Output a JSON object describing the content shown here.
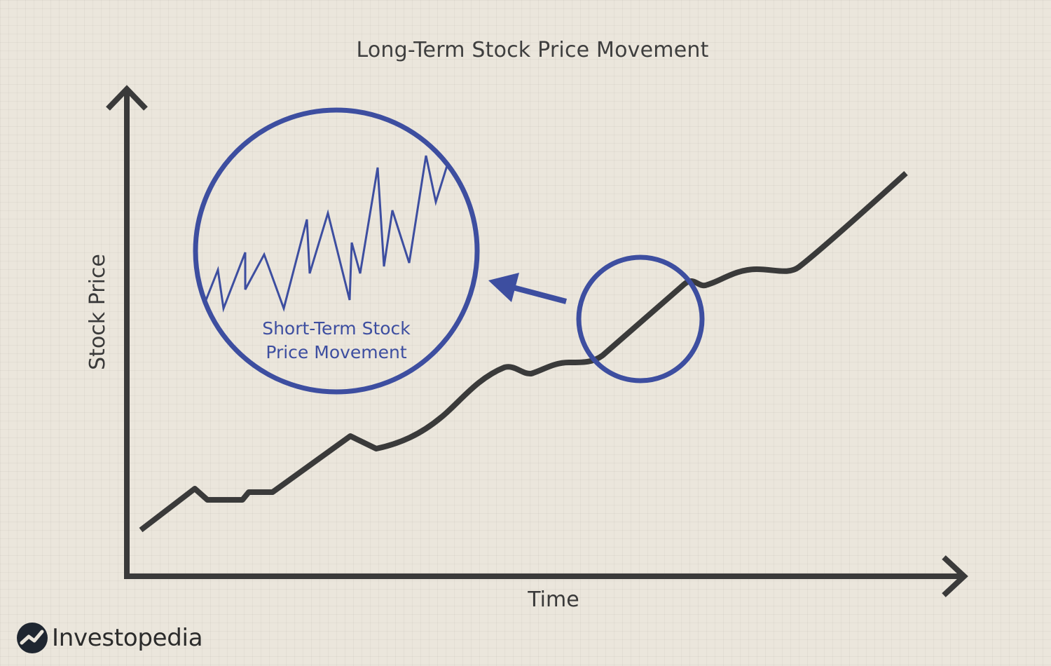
{
  "title": "Long-Term Stock Price Movement",
  "axes": {
    "x_label": "Time",
    "y_label": "Stock Price"
  },
  "inset": {
    "label_line1": "Short-Term Stock",
    "label_line2": "Price Movement"
  },
  "brand": {
    "name": "Investopedia"
  },
  "colors": {
    "line": "#3a3a3a",
    "accent": "#3d4ea0",
    "background": "#ebe6dc"
  }
}
